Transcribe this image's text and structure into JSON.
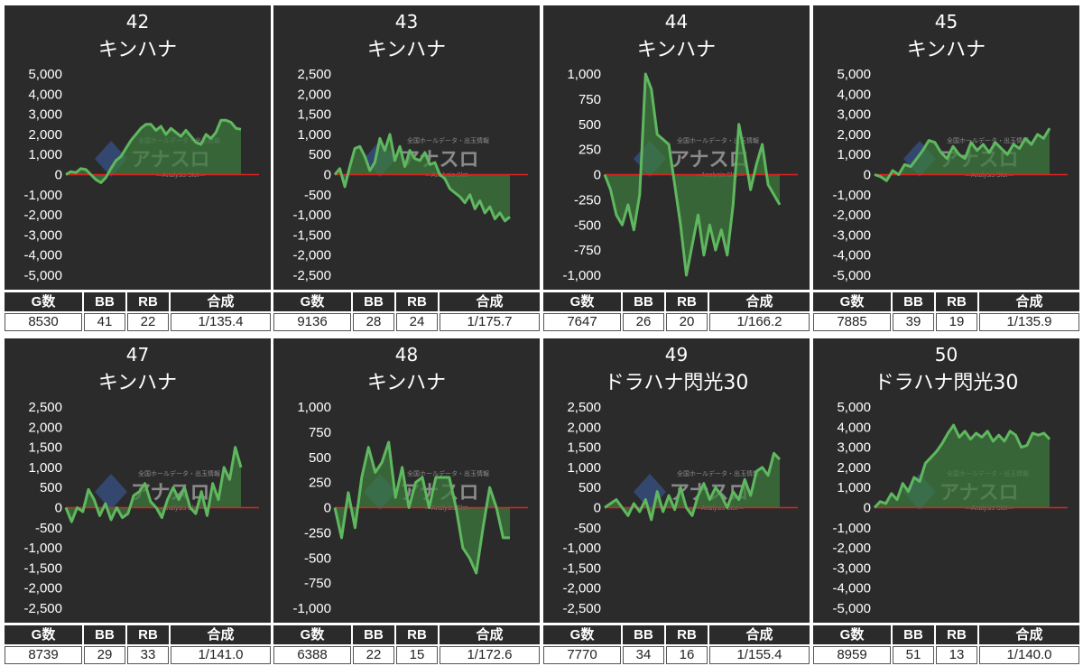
{
  "table_headers": [
    "G数",
    "BB",
    "RB",
    "合成"
  ],
  "colors": {
    "panel_bg": "#2b2b2b",
    "line": "#5fb85f",
    "fill": "#3d7a3d",
    "zero_line": "#e02020"
  },
  "watermark": {
    "brand": "アナスロ",
    "tagline": "Analysis Slot",
    "top_text": "全国ホールデータ・出玉情報"
  },
  "chart_data": [
    {
      "type": "line",
      "number": "42",
      "name": "キンハナ",
      "ylim": [
        -5000,
        5000
      ],
      "yticks": [
        "5,000",
        "4,000",
        "3,000",
        "2,000",
        "1,000",
        "0",
        "-1,000",
        "-2,000",
        "-3,000",
        "-4,000",
        "-5,000"
      ],
      "values": [
        0,
        150,
        100,
        300,
        250,
        0,
        -250,
        -400,
        -150,
        300,
        700,
        900,
        1300,
        1700,
        2000,
        2300,
        2500,
        2500,
        2200,
        2400,
        2000,
        2300,
        2100,
        1900,
        2200,
        1900,
        1600,
        1500,
        2000,
        1800,
        2100,
        2700,
        2700,
        2600,
        2300,
        2250
      ],
      "stats": {
        "g": "8530",
        "bb": "41",
        "rb": "22",
        "synth": "1/135.4"
      }
    },
    {
      "type": "line",
      "number": "43",
      "name": "キンハナ",
      "ylim": [
        -2500,
        2500
      ],
      "yticks": [
        "2,500",
        "2,000",
        "1,500",
        "1,000",
        "500",
        "0",
        "-500",
        "-1,000",
        "-1,500",
        "-2,000",
        "-2,500"
      ],
      "values": [
        0,
        150,
        -300,
        200,
        650,
        700,
        450,
        100,
        300,
        900,
        600,
        1000,
        350,
        700,
        200,
        600,
        400,
        350,
        550,
        250,
        300,
        0,
        -100,
        -350,
        -450,
        -550,
        -700,
        -500,
        -850,
        -650,
        -950,
        -800,
        -1100,
        -950,
        -1150,
        -1050
      ],
      "stats": {
        "g": "9136",
        "bb": "28",
        "rb": "24",
        "synth": "1/175.7"
      }
    },
    {
      "type": "line",
      "number": "44",
      "name": "キンハナ",
      "ylim": [
        -1000,
        1000
      ],
      "yticks": [
        "1,000",
        "750",
        "500",
        "250",
        "0",
        "-250",
        "-500",
        "-750",
        "-1,000"
      ],
      "values": [
        0,
        -150,
        -400,
        -500,
        -300,
        -550,
        -200,
        1000,
        850,
        400,
        350,
        300,
        -100,
        -500,
        -1000,
        -700,
        -400,
        -800,
        -500,
        -750,
        -550,
        -800,
        -300,
        500,
        200,
        -150,
        100,
        300,
        -100,
        -200,
        -300
      ],
      "stats": {
        "g": "7647",
        "bb": "26",
        "rb": "20",
        "synth": "1/166.2"
      }
    },
    {
      "type": "line",
      "number": "45",
      "name": "キンハナ",
      "ylim": [
        -5000,
        5000
      ],
      "yticks": [
        "5,000",
        "4,000",
        "3,000",
        "2,000",
        "1,000",
        "0",
        "-1,000",
        "-2,000",
        "-3,000",
        "-4,000",
        "-5,000"
      ],
      "values": [
        0,
        -100,
        -300,
        200,
        0,
        500,
        400,
        800,
        1200,
        1700,
        1600,
        1100,
        800,
        1400,
        1000,
        800,
        1600,
        1200,
        1500,
        1100,
        1600,
        1300,
        1000,
        1500,
        1300,
        1800,
        1500,
        2000,
        1800,
        2300
      ],
      "stats": {
        "g": "7885",
        "bb": "39",
        "rb": "19",
        "synth": "1/135.9"
      }
    },
    {
      "type": "line",
      "number": "47",
      "name": "キンハナ",
      "ylim": [
        -2500,
        2500
      ],
      "yticks": [
        "2,500",
        "2,000",
        "1,500",
        "1,000",
        "500",
        "0",
        "-500",
        "-1,000",
        "-1,500",
        "-2,000",
        "-2,500"
      ],
      "values": [
        0,
        -350,
        0,
        -100,
        450,
        200,
        -200,
        100,
        -300,
        0,
        -250,
        -150,
        300,
        400,
        600,
        150,
        0,
        -250,
        200,
        500,
        200,
        500,
        0,
        -150,
        400,
        -200,
        600,
        200,
        1000,
        700,
        1500,
        1000
      ],
      "stats": {
        "g": "8739",
        "bb": "29",
        "rb": "33",
        "synth": "1/141.0"
      }
    },
    {
      "type": "line",
      "number": "48",
      "name": "キンハナ",
      "ylim": [
        -1000,
        1000
      ],
      "yticks": [
        "1,000",
        "750",
        "500",
        "250",
        "0",
        "-250",
        "-500",
        "-750",
        "-1,000"
      ],
      "values": [
        0,
        -300,
        150,
        -200,
        300,
        600,
        350,
        450,
        650,
        100,
        400,
        0,
        250,
        300,
        0,
        300,
        300,
        300,
        0,
        -400,
        -500,
        -650,
        -200,
        200,
        0,
        -300,
        -300
      ],
      "stats": {
        "g": "6388",
        "bb": "22",
        "rb": "15",
        "synth": "1/172.6"
      }
    },
    {
      "type": "line",
      "number": "49",
      "name": "ドラハナ閃光30",
      "ylim": [
        -2500,
        2500
      ],
      "yticks": [
        "2,500",
        "2,000",
        "1,500",
        "1,000",
        "500",
        "0",
        "-500",
        "-1,000",
        "-1,500",
        "-2,000",
        "-2,500"
      ],
      "values": [
        0,
        100,
        200,
        0,
        -200,
        100,
        -100,
        200,
        -300,
        400,
        -100,
        300,
        -50,
        500,
        0,
        -200,
        300,
        600,
        200,
        500,
        300,
        0,
        400,
        200,
        700,
        300,
        900,
        1000,
        800,
        1350,
        1200
      ],
      "stats": {
        "g": "7770",
        "bb": "34",
        "rb": "16",
        "synth": "1/155.4"
      }
    },
    {
      "type": "line",
      "number": "50",
      "name": "ドラハナ閃光30",
      "ylim": [
        -5000,
        5000
      ],
      "yticks": [
        "5,000",
        "4,000",
        "3,000",
        "2,000",
        "1,000",
        "0",
        "-1,000",
        "-2,000",
        "-3,000",
        "-4,000",
        "-5,000"
      ],
      "values": [
        0,
        300,
        200,
        700,
        400,
        1200,
        800,
        1500,
        1300,
        2200,
        2500,
        2800,
        3200,
        3700,
        4100,
        3500,
        3800,
        3400,
        3700,
        3500,
        3800,
        3300,
        3600,
        3300,
        3800,
        3600,
        3000,
        3100,
        3700,
        3600,
        3700,
        3400
      ],
      "stats": {
        "g": "8959",
        "bb": "51",
        "rb": "13",
        "synth": "1/140.0"
      }
    }
  ]
}
